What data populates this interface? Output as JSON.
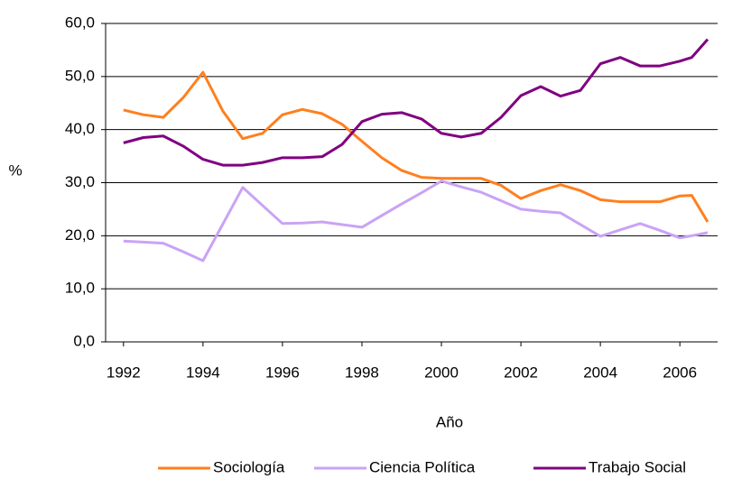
{
  "chart_data": {
    "type": "line",
    "x_label": "Año",
    "y_label": "%",
    "x": [
      1992,
      1992.5,
      1993,
      1993.5,
      1994,
      1994.5,
      1995,
      1995.5,
      1996,
      1996.5,
      1997,
      1997.5,
      1998,
      1998.5,
      1999,
      1999.5,
      2000,
      2000.5,
      2001,
      2001.5,
      2002,
      2002.5,
      2003,
      2003.5,
      2004,
      2004.5,
      2005,
      2005.5,
      2006,
      2006.3,
      2006.7
    ],
    "series": [
      {
        "name": "Sociología",
        "color": "#ff7f1e",
        "values": [
          43.7,
          42.8,
          42.3,
          46,
          50.8,
          43.5,
          38.3,
          39.3,
          42.8,
          43.8,
          43,
          41,
          37.8,
          34.7,
          32.3,
          31,
          30.8,
          30.8,
          30.8,
          29.5,
          27,
          28.5,
          29.6,
          28.5,
          26.8,
          26.4,
          26.4,
          26.4,
          27.5,
          27.6,
          22.6
        ]
      },
      {
        "name": "Ciencia Política",
        "color": "#c9a3f5",
        "values": [
          19,
          18.8,
          18.6,
          17,
          15.3,
          22.2,
          29.1,
          25.7,
          22.3,
          22.4,
          22.6,
          22.1,
          21.6,
          23.8,
          26,
          28.1,
          30.3,
          29.2,
          28.2,
          26.6,
          25,
          24.6,
          24.3,
          22.1,
          19.9,
          21.1,
          22.3,
          21,
          19.6,
          20,
          20.6
        ]
      },
      {
        "name": "Trabajo Social",
        "color": "#800080",
        "values": [
          37.5,
          38.5,
          38.8,
          36.9,
          34.4,
          33.3,
          33.3,
          33.8,
          34.7,
          34.7,
          34.9,
          37.2,
          41.5,
          42.9,
          43.2,
          42,
          39.3,
          38.6,
          39.3,
          42.3,
          46.4,
          48.1,
          46.3,
          47.4,
          52.4,
          53.6,
          52,
          52,
          52.9,
          53.6,
          57
        ]
      }
    ],
    "xlim": [
      1991.55,
      2006.95
    ],
    "xticks": [
      1992,
      1994,
      1996,
      1998,
      2000,
      2002,
      2004,
      2006
    ],
    "ylim": [
      0,
      60
    ],
    "yticks": [
      {
        "value": 0,
        "label": "0,0"
      },
      {
        "value": 10,
        "label": "10,0"
      },
      {
        "value": 20,
        "label": "20,0"
      },
      {
        "value": 30,
        "label": "30,0"
      },
      {
        "value": 40,
        "label": "40,0"
      },
      {
        "value": 50,
        "label": "50,0"
      },
      {
        "value": 60,
        "label": "60,0"
      }
    ],
    "grid": true,
    "legend": "bottom"
  }
}
